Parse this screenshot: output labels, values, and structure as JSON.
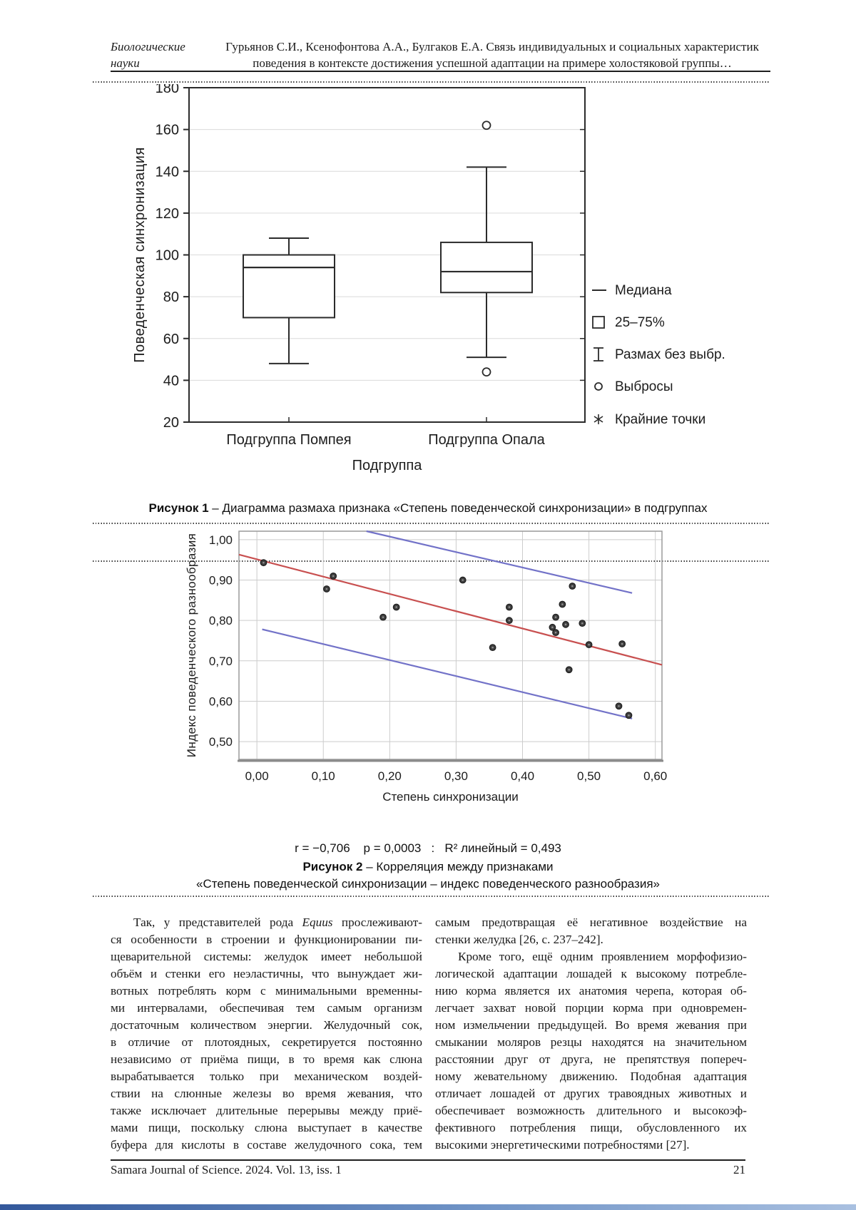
{
  "page": {
    "header": {
      "section_line1": "Биологические",
      "section_line2": "науки",
      "authors_line1": "Гурьянов С.И., Ксенофонтова А.А., Булгаков Е.А. Связь индивидуальных и социальных характеристик",
      "authors_line2": "поведения в контексте достижения успешной адаптации на примере холостяковой группы…"
    },
    "footer": {
      "journal": "Samara Journal of Science. 2024. Vol. 13, iss. 1",
      "page_number": "21"
    }
  },
  "figure1": {
    "caption_label": "Рисунок 1",
    "caption_text": " – Диаграмма размаха признака «Степень поведенческой синхронизации» в подгруппах"
  },
  "figure2": {
    "stats_display": "r = −0,706    p = 0,0003   :   R² линейный = 0,493",
    "caption_label": "Рисунок 2",
    "caption_line1": " – Корреляция между признаками",
    "caption_line2": "«Степень поведенческой синхронизации – индекс поведенческого разнообразия»"
  },
  "chart_data": [
    {
      "type": "boxplot",
      "title": "",
      "ylabel": "Поведенческая  синхронизация",
      "xlabel": "Подгруппа",
      "ylim": [
        20,
        180
      ],
      "yticks": [
        20,
        40,
        60,
        80,
        100,
        120,
        140,
        160,
        180
      ],
      "categories": [
        "Подгруппа Помпея",
        "Подгруппа Опала"
      ],
      "series": [
        {
          "name": "Подгруппа Помпея",
          "q1": 70,
          "median": 94,
          "q3": 100,
          "whisker_low": 48,
          "whisker_high": 108,
          "outliers": []
        },
        {
          "name": "Подгруппа Опала",
          "q1": 82,
          "median": 92,
          "q3": 106,
          "whisker_low": 51,
          "whisker_high": 142,
          "outliers": [
            162,
            44
          ]
        }
      ],
      "legend": [
        {
          "marker": "median-line",
          "label": "Медиана"
        },
        {
          "marker": "box",
          "label": "25–75%"
        },
        {
          "marker": "whisker",
          "label": "Размах без выбр."
        },
        {
          "marker": "circle",
          "label": "Выбросы"
        },
        {
          "marker": "asterisk",
          "label": "Крайние точки"
        }
      ],
      "grid": "horizontal",
      "line_color": "#2b2b2b",
      "grid_color": "#dadada"
    },
    {
      "type": "scatter",
      "xlabel": "Степень синхронизации",
      "ylabel": "Индекс  поведенческого  разнообразия",
      "xlim": [
        -0.027,
        0.61
      ],
      "ylim": [
        0.456,
        1.021
      ],
      "xtick_values": [
        0.0,
        0.1,
        0.2,
        0.3,
        0.4,
        0.5,
        0.6
      ],
      "xtick_labels": [
        "0,00",
        "0,10",
        "0,20",
        "0,30",
        "0,40",
        "0,50",
        "0,60"
      ],
      "ytick_values": [
        0.5,
        0.6,
        0.7,
        0.8,
        0.9,
        1.0
      ],
      "ytick_labels": [
        "0,50",
        "0,60",
        "0,70",
        "0,80",
        "0,90",
        "1,00"
      ],
      "points": [
        [
          0.01,
          0.943
        ],
        [
          0.105,
          0.878
        ],
        [
          0.115,
          0.91
        ],
        [
          0.19,
          0.808
        ],
        [
          0.21,
          0.833
        ],
        [
          0.31,
          0.9
        ],
        [
          0.355,
          0.733
        ],
        [
          0.38,
          0.833
        ],
        [
          0.38,
          0.8
        ],
        [
          0.445,
          0.783
        ],
        [
          0.45,
          0.808
        ],
        [
          0.45,
          0.77
        ],
        [
          0.46,
          0.84
        ],
        [
          0.465,
          0.79
        ],
        [
          0.47,
          0.678
        ],
        [
          0.475,
          0.885
        ],
        [
          0.49,
          0.793
        ],
        [
          0.5,
          0.74
        ],
        [
          0.545,
          0.588
        ],
        [
          0.55,
          0.742
        ],
        [
          0.56,
          0.565
        ]
      ],
      "regression_line": {
        "x1": -0.027,
        "y1": 0.963,
        "x2": 0.61,
        "y2": 0.69,
        "color": "#c85050"
      },
      "confidence_lines": [
        {
          "x1": 0.165,
          "y1": 1.021,
          "x2": 0.565,
          "y2": 0.868,
          "color": "#7272c8"
        },
        {
          "x1": 0.008,
          "y1": 0.778,
          "x2": 0.565,
          "y2": 0.557,
          "color": "#7272c8"
        }
      ],
      "stats": "r = −0,706  p = 0,0003 : R² линейный = 0,493",
      "point_color": "#3f3f3f",
      "grid": "both",
      "grid_color": "#cccccc",
      "frame_color": "#9a9a9a"
    }
  ],
  "body": {
    "left_column": {
      "line1_pre": "Так, у представителей рода ",
      "line1_italic": "Equus",
      "line1_post": " прослеживают-",
      "lines": [
        "ся особенности в строении и функционировании пи-",
        "щеварительной системы: желудок имеет небольшой",
        "объём и стенки его неэластичны, что вынуждает жи-",
        "вотных потреблять корм с минимальными временны-",
        "ми интервалами, обеспечивая тем самым организм",
        "достаточным количеством энергии. Желудочный сок,",
        "в отличие от плотоядных, секретируется постоянно",
        "независимо от приёма пищи, в то время как слюна",
        "вырабатывается только при механическом воздей-",
        "ствии на слюнные железы во время жевания, что",
        "также исключает длительные перерывы между приё-",
        "мами пищи, поскольку слюна выступает в качестве",
        "буфера для кислоты в составе желудочного сока, тем"
      ]
    },
    "right_column": {
      "para1_lines": [
        "самым предотвращая её негативное воздействие на",
        "стенки желудка [26, с. 237–242]."
      ],
      "para2_lines": [
        "Кроме того, ещё одним проявлением морфофизио-",
        "логической адаптации лошадей к высокому потребле-",
        "нию корма является их анатомия черепа, которая об-",
        "легчает захват новой порции корма при одновремен-",
        "ном измельчении предыдущей. Во время жевания при",
        "смыкании моляров резцы находятся на значительном",
        "расстоянии друг от друга, не препятствуя попереч-",
        "ному жевательному движению. Подобная адаптация",
        "отличает лошадей от других травоядных животных и",
        "обеспечивает возможность длительного и высокоэф-",
        "фективного потребления пищи, обусловленного их",
        "высокими энергетическими потребностями [27]."
      ]
    }
  }
}
